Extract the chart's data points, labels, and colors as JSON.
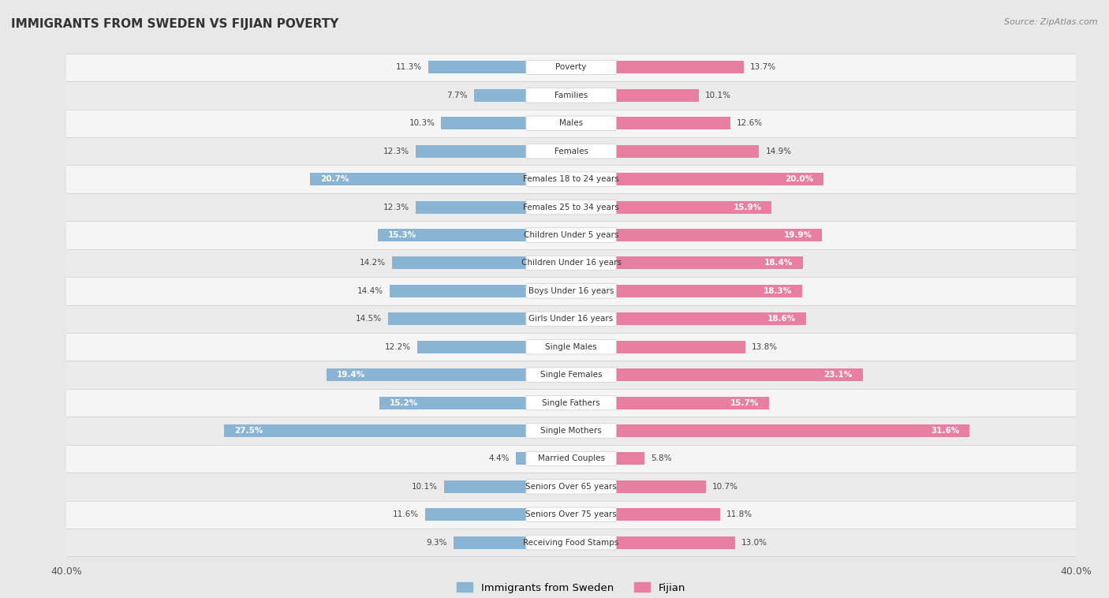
{
  "title": "IMMIGRANTS FROM SWEDEN VS FIJIAN POVERTY",
  "source": "Source: ZipAtlas.com",
  "categories": [
    "Poverty",
    "Families",
    "Males",
    "Females",
    "Females 18 to 24 years",
    "Females 25 to 34 years",
    "Children Under 5 years",
    "Children Under 16 years",
    "Boys Under 16 years",
    "Girls Under 16 years",
    "Single Males",
    "Single Females",
    "Single Fathers",
    "Single Mothers",
    "Married Couples",
    "Seniors Over 65 years",
    "Seniors Over 75 years",
    "Receiving Food Stamps"
  ],
  "sweden_values": [
    11.3,
    7.7,
    10.3,
    12.3,
    20.7,
    12.3,
    15.3,
    14.2,
    14.4,
    14.5,
    12.2,
    19.4,
    15.2,
    27.5,
    4.4,
    10.1,
    11.6,
    9.3
  ],
  "fijian_values": [
    13.7,
    10.1,
    12.6,
    14.9,
    20.0,
    15.9,
    19.9,
    18.4,
    18.3,
    18.6,
    13.8,
    23.1,
    15.7,
    31.6,
    5.8,
    10.7,
    11.8,
    13.0
  ],
  "sweden_color": "#89b4d4",
  "fijian_color": "#e87fa0",
  "background_color": "#e8e8e8",
  "row_color_odd": "#f5f5f5",
  "row_color_even": "#ebebeb",
  "axis_max": 40.0,
  "legend_labels": [
    "Immigrants from Sweden",
    "Fijian"
  ],
  "bar_height": 0.45,
  "label_inside_threshold": 15.0
}
